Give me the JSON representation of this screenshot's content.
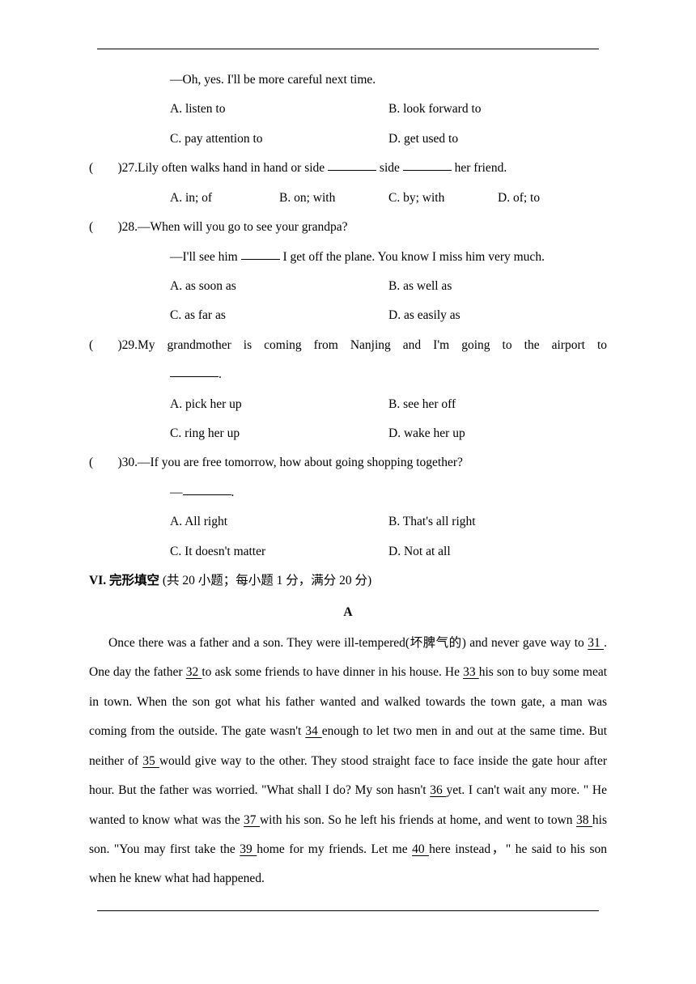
{
  "q26": {
    "response": "—Oh, yes. I'll be more careful next time.",
    "opt_a": "A. listen to",
    "opt_b": "B. look forward to",
    "opt_c": "C. pay attention to",
    "opt_d": "D. get used to"
  },
  "q27": {
    "paren": "(",
    "paren_close": ")27.",
    "text_before": "Lily often walks hand in hand or side ",
    "text_mid": " side ",
    "text_after": " her friend.",
    "opt_a": "A. in; of",
    "opt_b": "B. on; with",
    "opt_c": "C. by; with",
    "opt_d": "D. of; to"
  },
  "q28": {
    "paren": "(",
    "paren_close": ")28.",
    "line1": "—When will you go to see your grandpa?",
    "line2_before": "—I'll see him ",
    "line2_after": " I get off the plane. You know I miss him very much.",
    "opt_a": "A. as soon as",
    "opt_b": "B. as well as",
    "opt_c": "C. as far as",
    "opt_d": "D. as easily as"
  },
  "q29": {
    "paren": "(",
    "paren_close": ")29.",
    "line1": "My grandmother is coming from Nanjing and I'm going to the airport to",
    "line2_after": ".",
    "opt_a": "A. pick her up",
    "opt_b": "B. see her off",
    "opt_c": "C. ring her up",
    "opt_d": "D. wake her up"
  },
  "q30": {
    "paren": "(",
    "paren_close": ")30.",
    "line1": "—If you are free tomorrow, how about going shopping together?",
    "line2_before": "—",
    "line2_after": ".",
    "opt_a": "A. All right",
    "opt_b": "B. That's all right",
    "opt_c": "C. It doesn't matter",
    "opt_d": "D. Not at all"
  },
  "section6": {
    "header_bold": "VI. 完形填空",
    "header_rest": " (共 20 小题；每小题 1 分，满分 20 分)",
    "letter": "A"
  },
  "passage": {
    "text1": "Once there was a father and a son. They were ill-tempered(坏脾气的) and never gave way to ",
    "b31": "   31   ",
    "text2": ". One day the father ",
    "b32": "   32   ",
    "text3": " to ask some friends to have dinner in his house. He ",
    "b33": "   33   ",
    "text4": " his son to buy some meat in town. When the son got what his father wanted and walked towards the town gate, a man was coming from the outside. The gate wasn't ",
    "b34": "   34   ",
    "text5": " enough to let two men in and out at the same time. But neither of ",
    "b35": "   35   ",
    "text6": " would give way to the other. They stood straight face to face inside the gate hour after hour. But the father was worried. \"What shall I do? My son hasn't ",
    "b36": "   36   ",
    "text7": " yet. I can't wait any more. \" He wanted to know what was the ",
    "b37": "   37   ",
    "text8": " with his son. So he left his friends at home, and went to town ",
    "b38": "   38   ",
    "text9": " his son. \"You may first take the ",
    "b39": "   39   ",
    "text10": " home for my friends. Let me ",
    "b40": "   40   ",
    "text11": " here instead，\" he said to his son when he knew what had happened."
  }
}
